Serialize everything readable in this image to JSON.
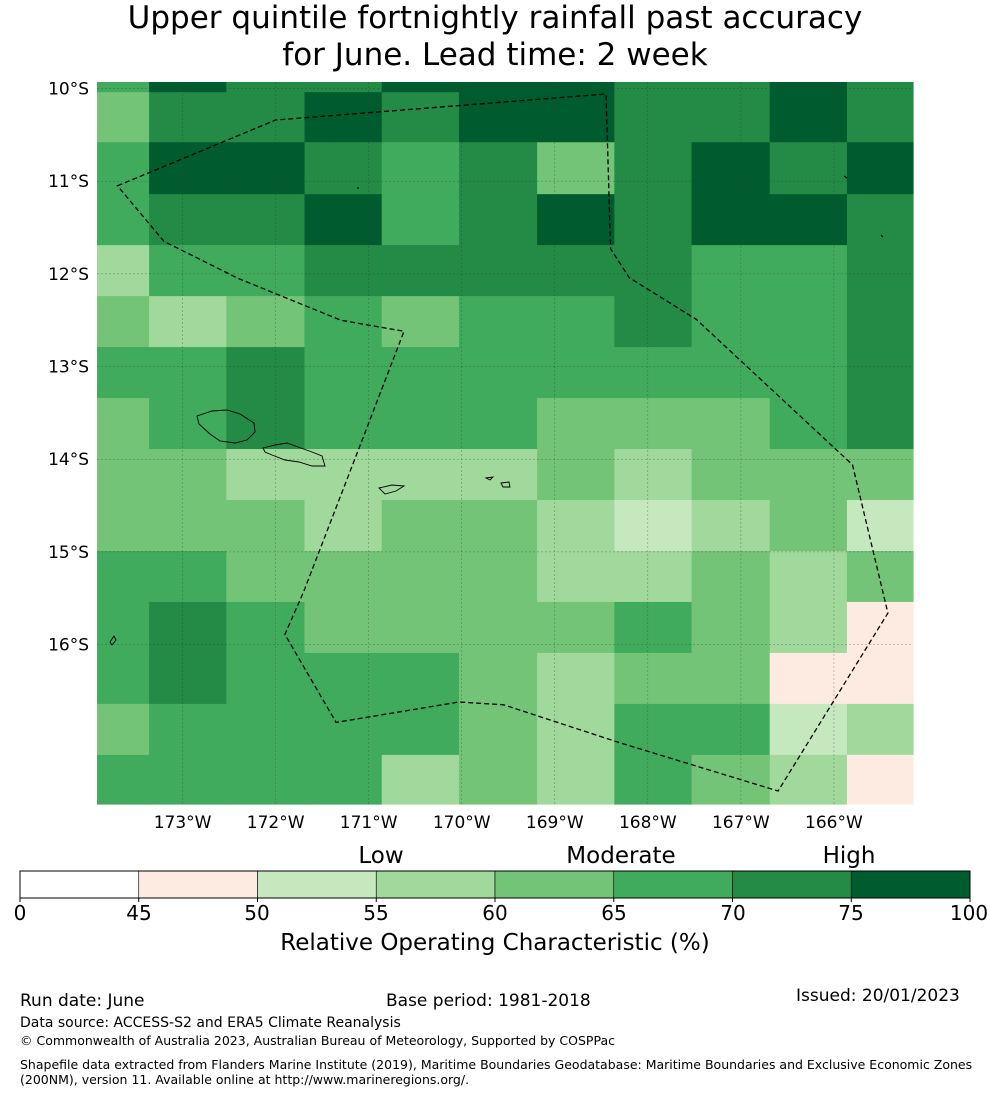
{
  "title": {
    "line1": "Upper quintile fortnightly rainfall past accuracy",
    "line2": "for June. Lead time: 2 week"
  },
  "map": {
    "lat_labels": [
      "10°S",
      "11°S",
      "12°S",
      "13°S",
      "14°S",
      "15°S",
      "16°S"
    ],
    "lon_labels": [
      "173°W",
      "172°W",
      "171°W",
      "170°W",
      "169°W",
      "168°W",
      "167°W",
      "166°W"
    ],
    "lon_values": [
      -173,
      -172,
      -171,
      -170,
      -169,
      -168,
      -167,
      -166
    ],
    "lat_values": [
      -10,
      -11,
      -12,
      -13,
      -14,
      -15,
      -16
    ],
    "extent": {
      "lon_min": -173.92,
      "lon_max": -165.15,
      "lat_min": -17.72,
      "lat_max": -9.93
    },
    "grid_lon_edges": [
      -173.92,
      -173.36,
      -172.53,
      -171.69,
      -170.86,
      -170.03,
      -169.19,
      -168.36,
      -167.53,
      -166.69,
      -165.86,
      -165.15
    ],
    "grid_lat_edges": [
      -9.93,
      -10.04,
      -10.58,
      -11.14,
      -11.69,
      -12.24,
      -12.79,
      -13.34,
      -13.89,
      -14.44,
      -14.99,
      -15.54,
      -16.09,
      -16.64,
      -17.19,
      -17.72
    ],
    "roc_values": [
      [
        67,
        77,
        72,
        72,
        77,
        77,
        77,
        72,
        72,
        77,
        72
      ],
      [
        62,
        72,
        72,
        77,
        72,
        77,
        77,
        72,
        72,
        77,
        72
      ],
      [
        67,
        77,
        77,
        72,
        67,
        72,
        62,
        72,
        77,
        72,
        77
      ],
      [
        67,
        72,
        72,
        77,
        67,
        72,
        77,
        72,
        77,
        77,
        72
      ],
      [
        57,
        67,
        67,
        72,
        72,
        72,
        72,
        72,
        67,
        67,
        72
      ],
      [
        62,
        57,
        62,
        67,
        62,
        67,
        67,
        72,
        67,
        67,
        72
      ],
      [
        67,
        67,
        72,
        67,
        67,
        67,
        67,
        67,
        67,
        67,
        72
      ],
      [
        62,
        67,
        72,
        67,
        67,
        67,
        62,
        62,
        62,
        67,
        72
      ],
      [
        62,
        62,
        57,
        57,
        57,
        57,
        62,
        57,
        62,
        62,
        62
      ],
      [
        62,
        62,
        62,
        57,
        62,
        62,
        57,
        52,
        57,
        62,
        52
      ],
      [
        67,
        67,
        62,
        62,
        62,
        62,
        57,
        57,
        62,
        57,
        62
      ],
      [
        67,
        72,
        67,
        62,
        62,
        62,
        62,
        67,
        62,
        57,
        47
      ],
      [
        67,
        72,
        67,
        67,
        67,
        62,
        57,
        62,
        62,
        47,
        47
      ],
      [
        62,
        67,
        67,
        67,
        67,
        62,
        57,
        67,
        67,
        52,
        57
      ],
      [
        67,
        67,
        67,
        67,
        57,
        62,
        57,
        67,
        62,
        57,
        47
      ]
    ],
    "eez_boundary": [
      [
        -173.7,
        -11.05
      ],
      [
        -172.0,
        -10.34
      ],
      [
        -168.45,
        -10.06
      ],
      [
        -168.4,
        -11.73
      ],
      [
        -168.2,
        -12.04
      ],
      [
        -167.48,
        -12.49
      ],
      [
        -165.8,
        -14.06
      ],
      [
        -165.42,
        -15.66
      ],
      [
        -166.6,
        -17.58
      ],
      [
        -168.3,
        -17.06
      ],
      [
        -169.55,
        -16.65
      ],
      [
        -170.03,
        -16.62
      ],
      [
        -171.35,
        -16.84
      ],
      [
        -171.9,
        -15.89
      ],
      [
        -171.7,
        -15.43
      ],
      [
        -171.1,
        -13.87
      ],
      [
        -170.62,
        -12.62
      ],
      [
        -171.3,
        -12.5
      ],
      [
        -172.4,
        -12.05
      ],
      [
        -173.2,
        -11.65
      ]
    ]
  },
  "legend": {
    "words": [
      "Low",
      "Moderate",
      "High"
    ],
    "ticks": [
      "0",
      "45",
      "50",
      "55",
      "60",
      "65",
      "70",
      "75",
      "100"
    ],
    "bounds": [
      0,
      45,
      50,
      55,
      60,
      65,
      70,
      75,
      100
    ],
    "colors": [
      "#ffffff",
      "#fdebe1",
      "#c6e8bf",
      "#a0d99b",
      "#73c476",
      "#41ab5d",
      "#238b45",
      "#005b2f"
    ],
    "label": "Relative Operating Characteristic (%)"
  },
  "footer": {
    "run_date": "Run date: June",
    "base_period": "Base period: 1981-2018",
    "issued": "Issued: 20/01/2023",
    "data_source": "Data source: ACCESS-S2 and ERA5 Climate Reanalysis",
    "copyright": "© Commonwealth of Australia 2023, Australian Bureau of Meteorology, Supported by COSPPac",
    "shapefile_line1": "Shapefile data extracted from Flanders Marine Institute (2019), Maritime Boundaries Geodatabase: Maritime Boundaries and Exclusive Economic Zones",
    "shapefile_line2": "(200NM), version 11. Available online at http://www.marineregions.org/."
  }
}
